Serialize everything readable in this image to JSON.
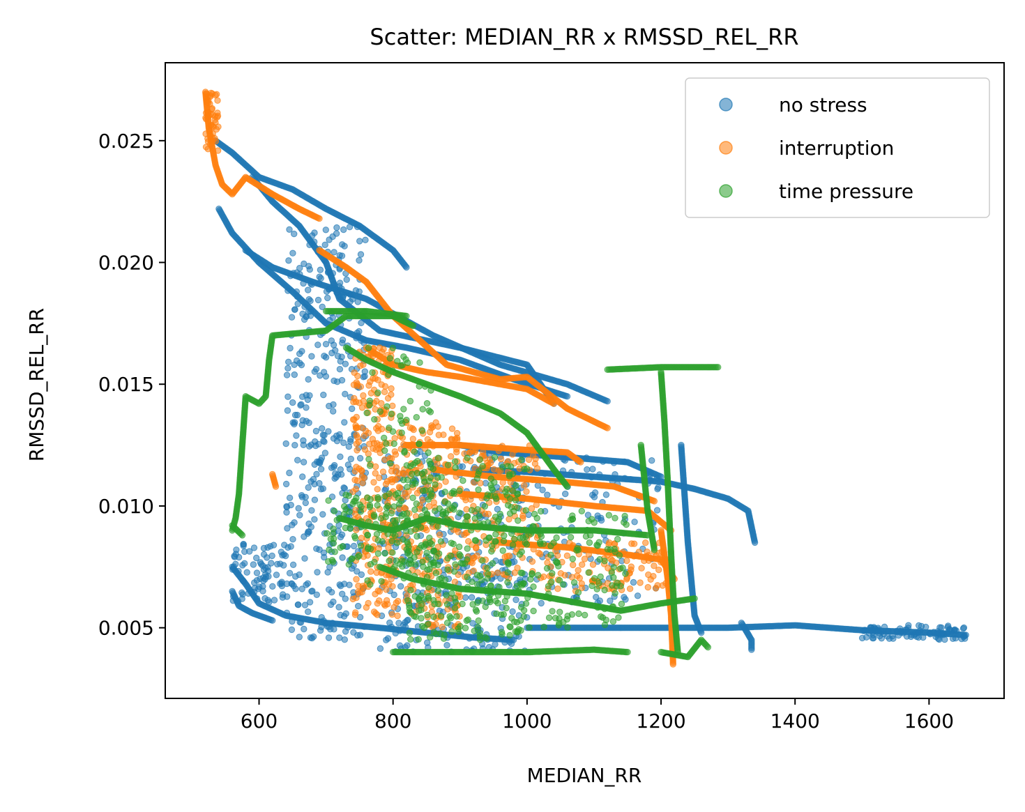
{
  "chart_data": {
    "type": "scatter",
    "title": "Scatter: MEDIAN_RR x RMSSD_REL_RR",
    "xlabel": "MEDIAN_RR",
    "ylabel": "RMSSD_REL_RR",
    "xlim": [
      460,
      1712
    ],
    "ylim": [
      0.0021,
      0.0282
    ],
    "xticks": [
      {
        "value": 600,
        "label": "600"
      },
      {
        "value": 800,
        "label": "800"
      },
      {
        "value": 1000,
        "label": "1000"
      },
      {
        "value": 1200,
        "label": "1200"
      },
      {
        "value": 1400,
        "label": "1400"
      },
      {
        "value": 1600,
        "label": "1600"
      }
    ],
    "yticks": [
      {
        "value": 0.005,
        "label": "0.005"
      },
      {
        "value": 0.01,
        "label": "0.010"
      },
      {
        "value": 0.015,
        "label": "0.015"
      },
      {
        "value": 0.02,
        "label": "0.020"
      },
      {
        "value": 0.025,
        "label": "0.025"
      }
    ],
    "grid": false,
    "legend_position": "top-right",
    "series": [
      {
        "name": "no stress",
        "color": "#1f77b4",
        "paths": [
          [
            [
              535,
              0.025
            ],
            [
              560,
              0.0245
            ],
            [
              600,
              0.0235
            ],
            [
              650,
              0.023
            ],
            [
              700,
              0.0222
            ],
            [
              750,
              0.0215
            ],
            [
              800,
              0.0205
            ],
            [
              820,
              0.0198
            ]
          ],
          [
            [
              540,
              0.0222
            ],
            [
              560,
              0.0212
            ],
            [
              600,
              0.02
            ],
            [
              650,
              0.0188
            ],
            [
              700,
              0.0175
            ],
            [
              760,
              0.0168
            ],
            [
              820,
              0.0165
            ],
            [
              900,
              0.016
            ],
            [
              980,
              0.0152
            ],
            [
              1060,
              0.0145
            ]
          ],
          [
            [
              580,
              0.0205
            ],
            [
              620,
              0.0198
            ],
            [
              680,
              0.0192
            ],
            [
              760,
              0.0185
            ],
            [
              860,
              0.017
            ],
            [
              960,
              0.0158
            ],
            [
              1060,
              0.015
            ],
            [
              1120,
              0.0143
            ]
          ],
          [
            [
              590,
              0.0235
            ],
            [
              620,
              0.0225
            ],
            [
              660,
              0.0215
            ],
            [
              700,
              0.02
            ],
            [
              720,
              0.0185
            ],
            [
              780,
              0.0172
            ],
            [
              900,
              0.0165
            ],
            [
              1000,
              0.0158
            ],
            [
              1040,
              0.0142
            ]
          ],
          [
            [
              900,
              0.0125
            ],
            [
              960,
              0.0122
            ],
            [
              1060,
              0.012
            ],
            [
              1150,
              0.0118
            ],
            [
              1200,
              0.0112
            ]
          ],
          [
            [
              920,
              0.0115
            ],
            [
              1000,
              0.0114
            ],
            [
              1100,
              0.0112
            ],
            [
              1200,
              0.011
            ],
            [
              1250,
              0.0107
            ],
            [
              1300,
              0.0103
            ],
            [
              1330,
              0.0098
            ],
            [
              1340,
              0.0085
            ]
          ],
          [
            [
              560,
              0.0075
            ],
            [
              580,
              0.0068
            ],
            [
              600,
              0.006
            ],
            [
              640,
              0.0055
            ],
            [
              700,
              0.0052
            ],
            [
              780,
              0.005
            ],
            [
              850,
              0.0048
            ],
            [
              920,
              0.0046
            ],
            [
              980,
              0.0045
            ]
          ],
          [
            [
              560,
              0.0065
            ],
            [
              570,
              0.0059
            ],
            [
              590,
              0.0056
            ],
            [
              620,
              0.0053
            ]
          ],
          [
            [
              1000,
              0.005
            ],
            [
              1100,
              0.005
            ],
            [
              1200,
              0.005
            ],
            [
              1300,
              0.005
            ],
            [
              1400,
              0.0051
            ],
            [
              1500,
              0.0049
            ],
            [
              1600,
              0.0048
            ],
            [
              1655,
              0.0047
            ]
          ],
          [
            [
              1230,
              0.0125
            ],
            [
              1240,
              0.0085
            ],
            [
              1250,
              0.0055
            ],
            [
              1260,
              0.0048
            ]
          ],
          [
            [
              1320,
              0.0052
            ],
            [
              1335,
              0.0045
            ],
            [
              1335,
              0.0041
            ]
          ]
        ],
        "clusters": [
          {
            "x": [
              640,
              760
            ],
            "y": [
              0.0045,
              0.0215
            ],
            "n": 420
          },
          {
            "x": [
              560,
              640
            ],
            "y": [
              0.006,
              0.0085
            ],
            "n": 80
          },
          {
            "x": [
              780,
              1000
            ],
            "y": [
              0.004,
              0.0125
            ],
            "n": 320
          },
          {
            "x": [
              1000,
              1200
            ],
            "y": [
              0.006,
              0.0122
            ],
            "n": 120
          },
          {
            "x": [
              1500,
              1655
            ],
            "y": [
              0.0045,
              0.0051
            ],
            "n": 90
          }
        ]
      },
      {
        "name": "interruption",
        "color": "#ff7f0e",
        "paths": [
          [
            [
              520,
              0.027
            ],
            [
              525,
              0.0255
            ],
            [
              535,
              0.024
            ],
            [
              545,
              0.0232
            ],
            [
              560,
              0.0228
            ],
            [
              580,
              0.0235
            ],
            [
              620,
              0.0228
            ],
            [
              660,
              0.0222
            ],
            [
              690,
              0.0218
            ]
          ],
          [
            [
              690,
              0.0205
            ],
            [
              730,
              0.0198
            ],
            [
              760,
              0.0192
            ],
            [
              800,
              0.0178
            ],
            [
              840,
              0.0168
            ],
            [
              880,
              0.0158
            ],
            [
              960,
              0.0152
            ],
            [
              1000,
              0.0153
            ],
            [
              1060,
              0.014
            ],
            [
              1120,
              0.0132
            ]
          ],
          [
            [
              820,
              0.0125
            ],
            [
              900,
              0.0125
            ],
            [
              1000,
              0.0123
            ],
            [
              1060,
              0.0122
            ],
            [
              1080,
              0.0118
            ]
          ],
          [
            [
              760,
              0.0165
            ],
            [
              800,
              0.0158
            ],
            [
              850,
              0.0155
            ],
            [
              900,
              0.0153
            ],
            [
              960,
              0.015
            ],
            [
              1000,
              0.0148
            ],
            [
              1040,
              0.0142
            ]
          ],
          [
            [
              860,
              0.0115
            ],
            [
              950,
              0.0112
            ],
            [
              1050,
              0.011
            ],
            [
              1130,
              0.0108
            ],
            [
              1190,
              0.0102
            ]
          ],
          [
            [
              900,
              0.0105
            ],
            [
              1000,
              0.0103
            ],
            [
              1100,
              0.01
            ],
            [
              1180,
              0.0098
            ],
            [
              1215,
              0.009
            ]
          ],
          [
            [
              960,
              0.0085
            ],
            [
              1060,
              0.0083
            ],
            [
              1150,
              0.008
            ],
            [
              1200,
              0.0078
            ],
            [
              1220,
              0.007
            ]
          ],
          [
            [
              1200,
              0.009
            ],
            [
              1210,
              0.007
            ],
            [
              1215,
              0.0055
            ],
            [
              1218,
              0.0035
            ]
          ],
          [
            [
              620,
              0.0113
            ],
            [
              625,
              0.0108
            ]
          ]
        ],
        "clusters": [
          {
            "x": [
              740,
              800
            ],
            "y": [
              0.0055,
              0.0165
            ],
            "n": 260
          },
          {
            "x": [
              800,
              900
            ],
            "y": [
              0.005,
              0.0135
            ],
            "n": 240
          },
          {
            "x": [
              900,
              1020
            ],
            "y": [
              0.007,
              0.0125
            ],
            "n": 160
          },
          {
            "x": [
              1020,
              1215
            ],
            "y": [
              0.0065,
              0.0085
            ],
            "n": 120
          },
          {
            "x": [
              520,
              540
            ],
            "y": [
              0.0245,
              0.027
            ],
            "n": 50
          }
        ]
      },
      {
        "name": "time pressure",
        "color": "#2ca02c",
        "paths": [
          [
            [
              560,
              0.009
            ],
            [
              565,
              0.0095
            ],
            [
              570,
              0.0105
            ],
            [
              575,
              0.0125
            ],
            [
              580,
              0.0145
            ],
            [
              600,
              0.0142
            ],
            [
              610,
              0.0145
            ],
            [
              615,
              0.016
            ],
            [
              620,
              0.017
            ],
            [
              660,
              0.0171
            ],
            [
              700,
              0.0172
            ],
            [
              730,
              0.0178
            ],
            [
              800,
              0.0178
            ],
            [
              830,
              0.0174
            ]
          ],
          [
            [
              700,
              0.018
            ],
            [
              760,
              0.018
            ],
            [
              820,
              0.0178
            ]
          ],
          [
            [
              730,
              0.0165
            ],
            [
              760,
              0.016
            ],
            [
              800,
              0.0155
            ],
            [
              850,
              0.015
            ],
            [
              900,
              0.0145
            ],
            [
              960,
              0.0138
            ],
            [
              1000,
              0.013
            ],
            [
              1040,
              0.0115
            ],
            [
              1060,
              0.0108
            ]
          ],
          [
            [
              720,
              0.0095
            ],
            [
              760,
              0.0092
            ],
            [
              800,
              0.009
            ],
            [
              850,
              0.0095
            ],
            [
              900,
              0.0092
            ],
            [
              1000,
              0.009
            ],
            [
              1100,
              0.009
            ],
            [
              1180,
              0.0088
            ]
          ],
          [
            [
              780,
              0.0075
            ],
            [
              830,
              0.007
            ],
            [
              900,
              0.0066
            ],
            [
              1000,
              0.0064
            ],
            [
              1080,
              0.006
            ],
            [
              1140,
              0.0057
            ],
            [
              1200,
              0.006
            ],
            [
              1250,
              0.0062
            ]
          ],
          [
            [
              800,
              0.004
            ],
            [
              900,
              0.004
            ],
            [
              1000,
              0.004
            ],
            [
              1100,
              0.0041
            ],
            [
              1150,
              0.004
            ]
          ],
          [
            [
              1120,
              0.0156
            ],
            [
              1200,
              0.0157
            ],
            [
              1285,
              0.0157
            ]
          ],
          [
            [
              1200,
              0.0155
            ],
            [
              1205,
              0.0135
            ],
            [
              1210,
              0.011
            ],
            [
              1215,
              0.008
            ],
            [
              1220,
              0.0055
            ],
            [
              1225,
              0.004
            ]
          ],
          [
            [
              1170,
              0.0125
            ],
            [
              1180,
              0.0098
            ],
            [
              1190,
              0.0082
            ]
          ],
          [
            [
              1200,
              0.004
            ],
            [
              1240,
              0.0038
            ],
            [
              1260,
              0.0045
            ],
            [
              1270,
              0.0042
            ]
          ],
          [
            [
              560,
              0.0092
            ],
            [
              575,
              0.0088
            ]
          ]
        ],
        "clusters": [
          {
            "x": [
              820,
              1000
            ],
            "y": [
              0.0045,
              0.012
            ],
            "n": 340
          },
          {
            "x": [
              700,
              820
            ],
            "y": [
              0.0075,
              0.0105
            ],
            "n": 90
          },
          {
            "x": [
              1000,
              1150
            ],
            "y": [
              0.005,
              0.0098
            ],
            "n": 120
          },
          {
            "x": [
              760,
              860
            ],
            "y": [
              0.0065,
              0.0165
            ],
            "n": 100
          }
        ]
      }
    ]
  }
}
